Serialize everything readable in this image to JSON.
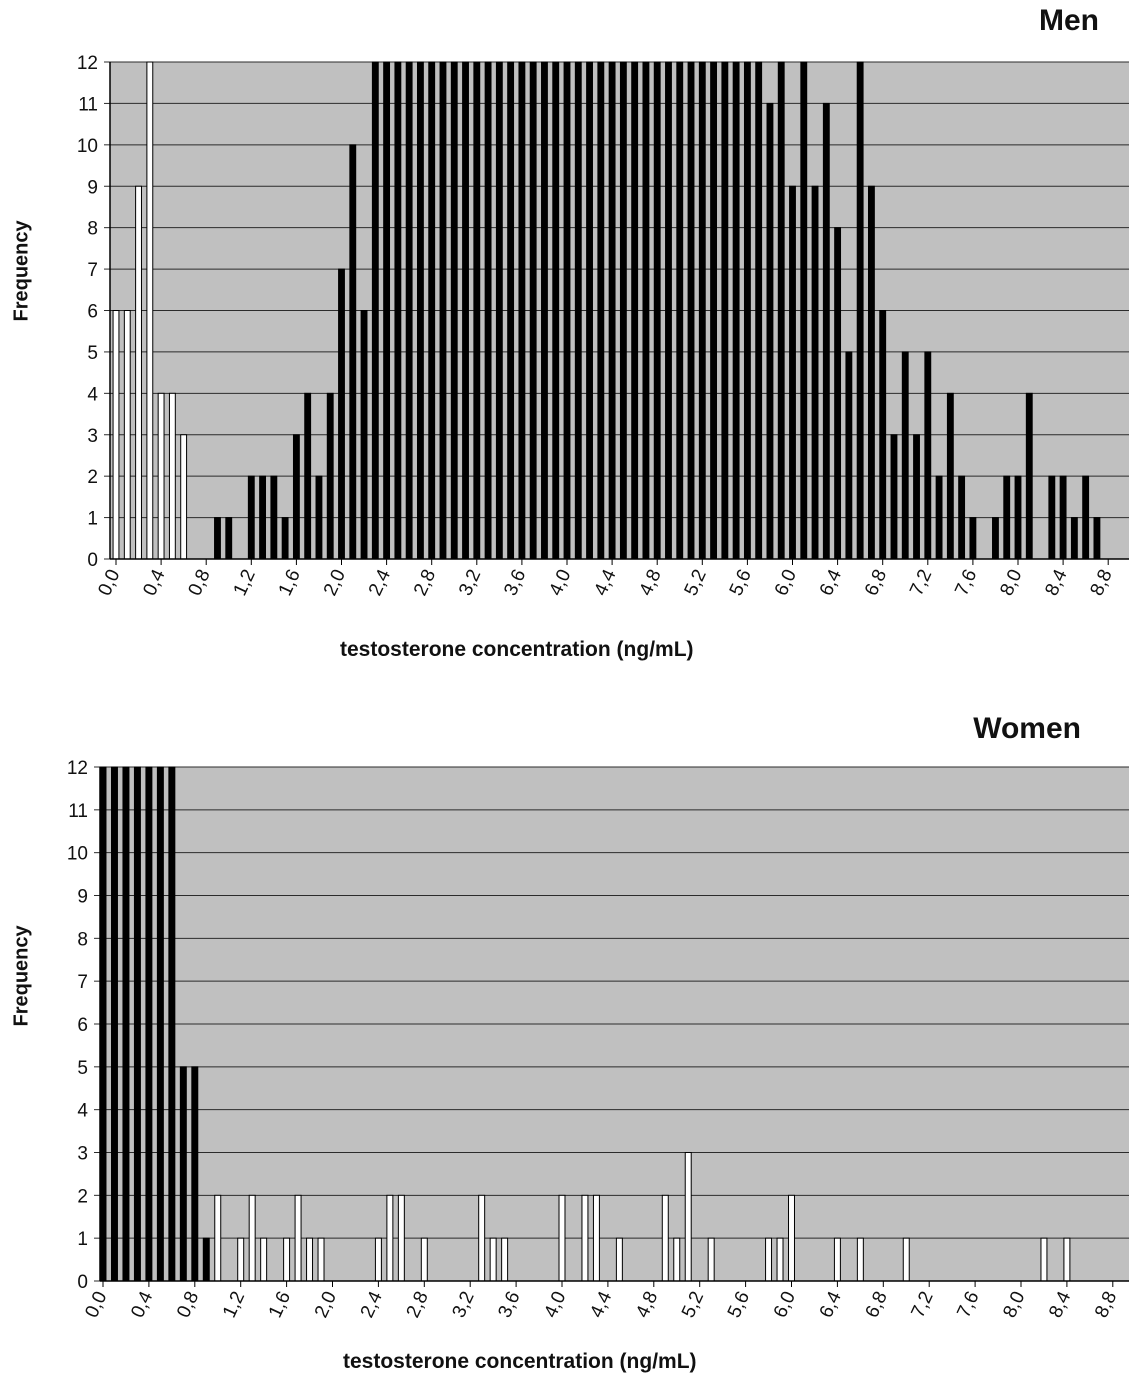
{
  "chart_data": [
    {
      "type": "bar",
      "title": "Men",
      "xlabel": "testosterone concentration  (ng/mL)",
      "ylabel": "Frequency",
      "ylim": [
        0,
        12
      ],
      "yticks": [
        "0",
        "1",
        "2",
        "3",
        "4",
        "5",
        "6",
        "7",
        "8",
        "9",
        "10",
        "11",
        "12"
      ],
      "xtick_labels": [
        "0,0",
        "0,4",
        "0,8",
        "1,2",
        "1,6",
        "2,0",
        "2,4",
        "2,8",
        "3,2",
        "3,6",
        "4,0",
        "4,4",
        "4,8",
        "5,2",
        "5,6",
        "6,0",
        "6,4",
        "6,8",
        "7,2",
        "7,6",
        "8,0",
        "8,4",
        "8,8"
      ],
      "grid": true,
      "bar_colors": {
        "white": "#ffffff",
        "black": "#000000",
        "plot_bg": "#c0c0c0"
      },
      "x": [
        0.0,
        0.1,
        0.2,
        0.3,
        0.4,
        0.5,
        0.6,
        0.7,
        0.8,
        0.9,
        1.0,
        1.1,
        1.2,
        1.3,
        1.4,
        1.5,
        1.6,
        1.7,
        1.8,
        1.9,
        2.0,
        2.1,
        2.2,
        2.3,
        2.4,
        2.5,
        2.6,
        2.7,
        2.8,
        2.9,
        3.0,
        3.1,
        3.2,
        3.3,
        3.4,
        3.5,
        3.6,
        3.7,
        3.8,
        3.9,
        4.0,
        4.1,
        4.2,
        4.3,
        4.4,
        4.5,
        4.6,
        4.7,
        4.8,
        4.9,
        5.0,
        5.1,
        5.2,
        5.3,
        5.4,
        5.5,
        5.6,
        5.7,
        5.8,
        5.9,
        6.0,
        6.1,
        6.2,
        6.3,
        6.4,
        6.5,
        6.6,
        6.7,
        6.8,
        6.9,
        7.0,
        7.1,
        7.2,
        7.3,
        7.4,
        7.5,
        7.6,
        7.7,
        7.8,
        7.9,
        8.0,
        8.1,
        8.2,
        8.3,
        8.4,
        8.5,
        8.6,
        8.7,
        8.8
      ],
      "values": [
        6,
        6,
        9,
        12,
        4,
        4,
        3,
        0,
        0,
        1,
        1,
        0,
        2,
        2,
        2,
        1,
        3,
        4,
        2,
        4,
        7,
        10,
        6,
        12,
        12,
        12,
        12,
        12,
        12,
        12,
        12,
        12,
        12,
        12,
        12,
        12,
        12,
        12,
        12,
        12,
        12,
        12,
        12,
        12,
        12,
        12,
        12,
        12,
        12,
        12,
        12,
        12,
        12,
        12,
        12,
        12,
        12,
        12,
        11,
        12,
        9,
        12,
        9,
        11,
        8,
        5,
        12,
        9,
        6,
        3,
        5,
        3,
        5,
        2,
        4,
        2,
        1,
        0,
        1,
        2,
        2,
        4,
        0,
        2,
        2,
        1,
        2,
        1,
        0
      ],
      "colors": [
        "white",
        "white",
        "white",
        "white",
        "white",
        "white",
        "white",
        "black",
        "black",
        "black",
        "black",
        "black",
        "black",
        "black",
        "black",
        "black",
        "black",
        "black",
        "black",
        "black",
        "black",
        "black",
        "black",
        "black",
        "black",
        "black",
        "black",
        "black",
        "black",
        "black",
        "black",
        "black",
        "black",
        "black",
        "black",
        "black",
        "black",
        "black",
        "black",
        "black",
        "black",
        "black",
        "black",
        "black",
        "black",
        "black",
        "black",
        "black",
        "black",
        "black",
        "black",
        "black",
        "black",
        "black",
        "black",
        "black",
        "black",
        "black",
        "black",
        "black",
        "black",
        "black",
        "black",
        "black",
        "black",
        "black",
        "black",
        "black",
        "black",
        "black",
        "black",
        "black",
        "black",
        "black",
        "black",
        "black",
        "black",
        "black",
        "black",
        "black",
        "black",
        "black",
        "black",
        "black",
        "black",
        "black",
        "black",
        "black",
        "black"
      ]
    },
    {
      "type": "bar",
      "title": "Women",
      "xlabel": "testosterone concentration (ng/mL)",
      "ylabel": "Frequency",
      "ylim": [
        0,
        12
      ],
      "yticks": [
        "0",
        "1",
        "2",
        "3",
        "4",
        "5",
        "6",
        "7",
        "8",
        "9",
        "10",
        "11",
        "12"
      ],
      "xtick_labels": [
        "0,0",
        "0,4",
        "0,8",
        "1,2",
        "1,6",
        "2,0",
        "2,4",
        "2,8",
        "3,2",
        "3,6",
        "4,0",
        "4,4",
        "4,8",
        "5,2",
        "5,6",
        "6,0",
        "6,4",
        "6,8",
        "7,2",
        "7,6",
        "8,0",
        "8,4",
        "8,8"
      ],
      "grid": true,
      "bar_colors": {
        "white": "#ffffff",
        "black": "#000000",
        "plot_bg": "#c0c0c0"
      },
      "x": [
        0.0,
        0.1,
        0.2,
        0.3,
        0.4,
        0.5,
        0.6,
        0.7,
        0.8,
        0.9,
        1.0,
        1.1,
        1.2,
        1.3,
        1.4,
        1.5,
        1.6,
        1.7,
        1.8,
        1.9,
        2.0,
        2.1,
        2.2,
        2.3,
        2.4,
        2.5,
        2.6,
        2.7,
        2.8,
        2.9,
        3.0,
        3.1,
        3.2,
        3.3,
        3.4,
        3.5,
        3.6,
        3.7,
        3.8,
        3.9,
        4.0,
        4.1,
        4.2,
        4.3,
        4.4,
        4.5,
        4.6,
        4.7,
        4.8,
        4.9,
        5.0,
        5.1,
        5.2,
        5.3,
        5.4,
        5.5,
        5.6,
        5.7,
        5.8,
        5.9,
        6.0,
        6.1,
        6.2,
        6.3,
        6.4,
        6.5,
        6.6,
        6.7,
        6.8,
        6.9,
        7.0,
        7.1,
        7.2,
        7.3,
        7.4,
        7.5,
        7.6,
        7.7,
        7.8,
        7.9,
        8.0,
        8.1,
        8.2,
        8.3,
        8.4,
        8.5,
        8.6,
        8.7,
        8.8
      ],
      "values": [
        12,
        12,
        12,
        12,
        12,
        12,
        12,
        5,
        5,
        1,
        2,
        0,
        1,
        2,
        1,
        0,
        1,
        2,
        1,
        1,
        0,
        0,
        0,
        0,
        1,
        2,
        2,
        0,
        1,
        0,
        0,
        0,
        0,
        2,
        1,
        1,
        0,
        0,
        0,
        0,
        2,
        0,
        2,
        2,
        0,
        1,
        0,
        0,
        0,
        2,
        1,
        3,
        0,
        1,
        0,
        0,
        0,
        0,
        1,
        1,
        2,
        0,
        0,
        0,
        1,
        0,
        1,
        0,
        0,
        0,
        1,
        0,
        0,
        0,
        0,
        0,
        0,
        0,
        0,
        0,
        0,
        0,
        1,
        0,
        1,
        0,
        0,
        0,
        0
      ],
      "colors": [
        "black",
        "black",
        "black",
        "black",
        "black",
        "black",
        "black",
        "black",
        "black",
        "black",
        "white",
        "white",
        "white",
        "white",
        "white",
        "white",
        "white",
        "white",
        "white",
        "white",
        "white",
        "white",
        "white",
        "white",
        "white",
        "white",
        "white",
        "white",
        "white",
        "white",
        "white",
        "white",
        "white",
        "white",
        "white",
        "white",
        "white",
        "white",
        "white",
        "white",
        "white",
        "white",
        "white",
        "white",
        "white",
        "white",
        "white",
        "white",
        "white",
        "white",
        "white",
        "white",
        "white",
        "white",
        "white",
        "white",
        "white",
        "white",
        "white",
        "white",
        "white",
        "white",
        "white",
        "white",
        "white",
        "white",
        "white",
        "white",
        "white",
        "white",
        "white",
        "white",
        "white",
        "white",
        "white",
        "white",
        "white",
        "white",
        "white",
        "white",
        "white",
        "white",
        "white",
        "white",
        "white",
        "white",
        "white",
        "white",
        "white"
      ]
    }
  ]
}
